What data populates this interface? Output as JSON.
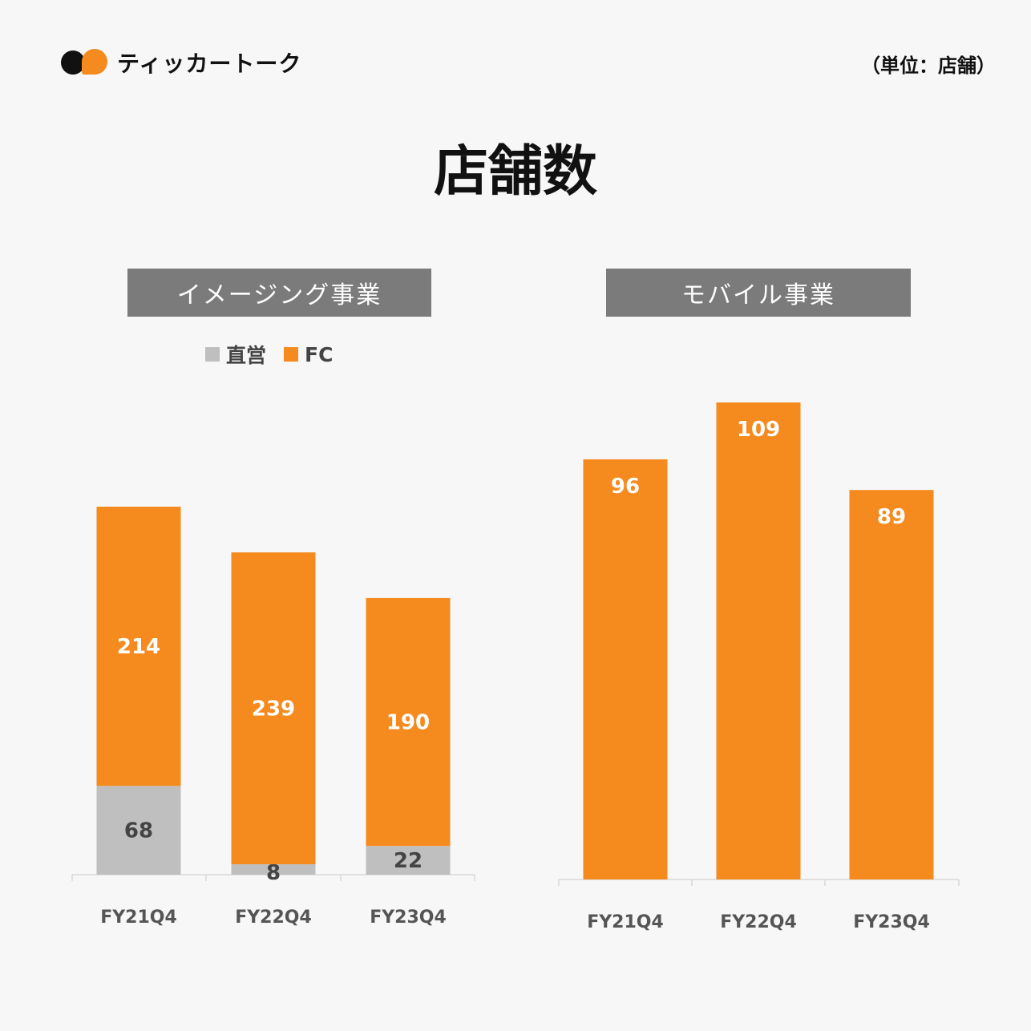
{
  "header": {
    "logo_text": "ティッカートーク",
    "unit": "（単位：店舗）"
  },
  "title": "店舗数",
  "colors": {
    "fc": "#f58a1f",
    "direct": "#bfbfbf",
    "header_bg": "#7b7b7b"
  },
  "chart_data": [
    {
      "type": "bar",
      "stacked": true,
      "title": "イメージング事業",
      "categories": [
        "FY21Q4",
        "FY22Q4",
        "FY23Q4"
      ],
      "legend": {
        "placement": "top-left",
        "entries": [
          "直営",
          "FC"
        ]
      },
      "series": [
        {
          "name": "直営",
          "values": [
            68,
            8,
            22
          ],
          "color": "#bfbfbf"
        },
        {
          "name": "FC",
          "values": [
            214,
            239,
            190
          ],
          "color": "#f58a1f"
        }
      ],
      "ylim": [
        0,
        282
      ],
      "grid": false
    },
    {
      "type": "bar",
      "stacked": false,
      "title": "モバイル事業",
      "categories": [
        "FY21Q4",
        "FY22Q4",
        "FY23Q4"
      ],
      "series": [
        {
          "values": [
            96,
            109,
            89
          ],
          "color": "#f58a1f"
        }
      ],
      "ylim": [
        0,
        109
      ],
      "grid": false
    }
  ]
}
